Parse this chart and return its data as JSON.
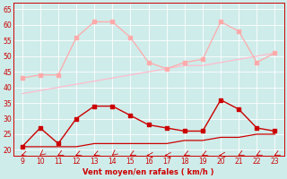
{
  "x": [
    9,
    10,
    11,
    12,
    13,
    14,
    15,
    16,
    17,
    18,
    19,
    20,
    21,
    22,
    23
  ],
  "wind_avg_line": [
    21,
    21,
    21,
    21,
    22,
    22,
    22,
    22,
    22,
    23,
    23,
    24,
    24,
    25,
    25
  ],
  "wind_gust": [
    21,
    27,
    22,
    30,
    34,
    34,
    31,
    28,
    27,
    26,
    26,
    36,
    33,
    27,
    26
  ],
  "rafales": [
    43,
    44,
    44,
    56,
    61,
    61,
    56,
    48,
    46,
    48,
    49,
    61,
    58,
    48,
    51
  ],
  "trend": [
    38,
    39,
    40,
    41,
    42,
    43,
    44,
    45,
    46,
    47,
    47,
    48,
    49,
    50,
    51
  ],
  "arrow_angles": [
    225,
    200,
    210,
    215,
    215,
    200,
    210,
    270,
    270,
    215,
    215,
    260,
    210,
    210,
    210
  ],
  "bg_color": "#ceecea",
  "color_dark_red": "#cc0000",
  "color_light_pink": "#ffaaaa",
  "color_trend": "#ffbbcc",
  "xlabel": "Vent moyen/en rafales ( km/h )",
  "ylim_min": 18,
  "ylim_max": 67,
  "xlim_min": 8.5,
  "xlim_max": 23.5,
  "yticks": [
    20,
    25,
    30,
    35,
    40,
    45,
    50,
    55,
    60,
    65
  ]
}
